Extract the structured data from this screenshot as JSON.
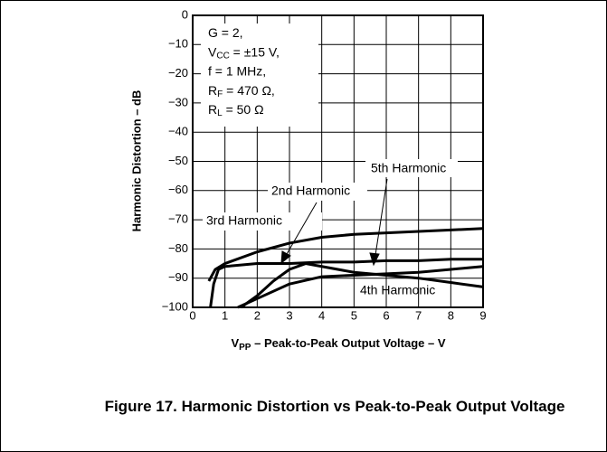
{
  "chart_data": {
    "type": "line",
    "ylabel": "Harmonic Distortion – dB",
    "xlabel": {
      "main": "V",
      "sub": "PP",
      "rest": " – Peak-to-Peak Output Voltage – V"
    },
    "caption": "Figure 17. Harmonic Distortion vs Peak-to-Peak Output Voltage",
    "conditions": [
      {
        "main": "G = 2,"
      },
      {
        "main": "V",
        "sub": "CC",
        "rest": " = ±15 V,"
      },
      {
        "main": "f = 1 MHz,"
      },
      {
        "main": "R",
        "sub": "F",
        "rest": " = 470 Ω,"
      },
      {
        "main": "R",
        "sub": "L",
        "rest": " = 50 Ω"
      }
    ],
    "xlim": [
      0,
      9
    ],
    "ylim": [
      -100,
      0
    ],
    "xticks": [
      0,
      1,
      2,
      3,
      4,
      5,
      6,
      7,
      8,
      9
    ],
    "yticks": [
      0,
      {
        "value": -10,
        "label": "−10"
      },
      {
        "value": -20,
        "label": "−20"
      },
      {
        "value": -30,
        "label": "−30"
      },
      {
        "value": -40,
        "label": "−40"
      },
      {
        "value": -50,
        "label": "−50"
      },
      {
        "value": -60,
        "label": "−60"
      },
      {
        "value": -70,
        "label": "−70"
      },
      {
        "value": -80,
        "label": "−80"
      },
      {
        "value": -90,
        "label": "−90"
      },
      {
        "value": -100,
        "label": "−100"
      }
    ],
    "grid": true,
    "series": [
      {
        "name": "3rd Harmonic",
        "color": "#000000",
        "x": [
          0.5,
          0.7,
          1,
          2,
          3,
          4,
          5,
          6,
          7,
          8,
          9
        ],
        "values": [
          -91,
          -87,
          -85,
          -81,
          -78,
          -76,
          -75,
          -74.5,
          -74,
          -73.5,
          -73
        ]
      },
      {
        "name": "5th Harmonic",
        "color": "#000000",
        "x": [
          0.55,
          0.65,
          0.8,
          1,
          2,
          3,
          4,
          5,
          6,
          7,
          8,
          9
        ],
        "values": [
          -100,
          -92,
          -87,
          -86,
          -85,
          -85,
          -84.5,
          -84.5,
          -84,
          -84,
          -83.5,
          -83.5
        ]
      },
      {
        "name": "2nd Harmonic",
        "color": "#000000",
        "x": [
          1.5,
          2,
          2.5,
          3,
          3.5,
          4,
          5,
          6,
          7,
          8,
          9
        ],
        "values": [
          -100,
          -96,
          -91,
          -87,
          -85,
          -86,
          -88,
          -89,
          -90,
          -91.5,
          -93
        ]
      },
      {
        "name": "4th Harmonic",
        "color": "#000000",
        "x": [
          1.4,
          2,
          3,
          4,
          5,
          6,
          7,
          8,
          9
        ],
        "values": [
          -100,
          -97,
          -92,
          -89.5,
          -89,
          -88.5,
          -88,
          -87,
          -86
        ]
      }
    ]
  }
}
